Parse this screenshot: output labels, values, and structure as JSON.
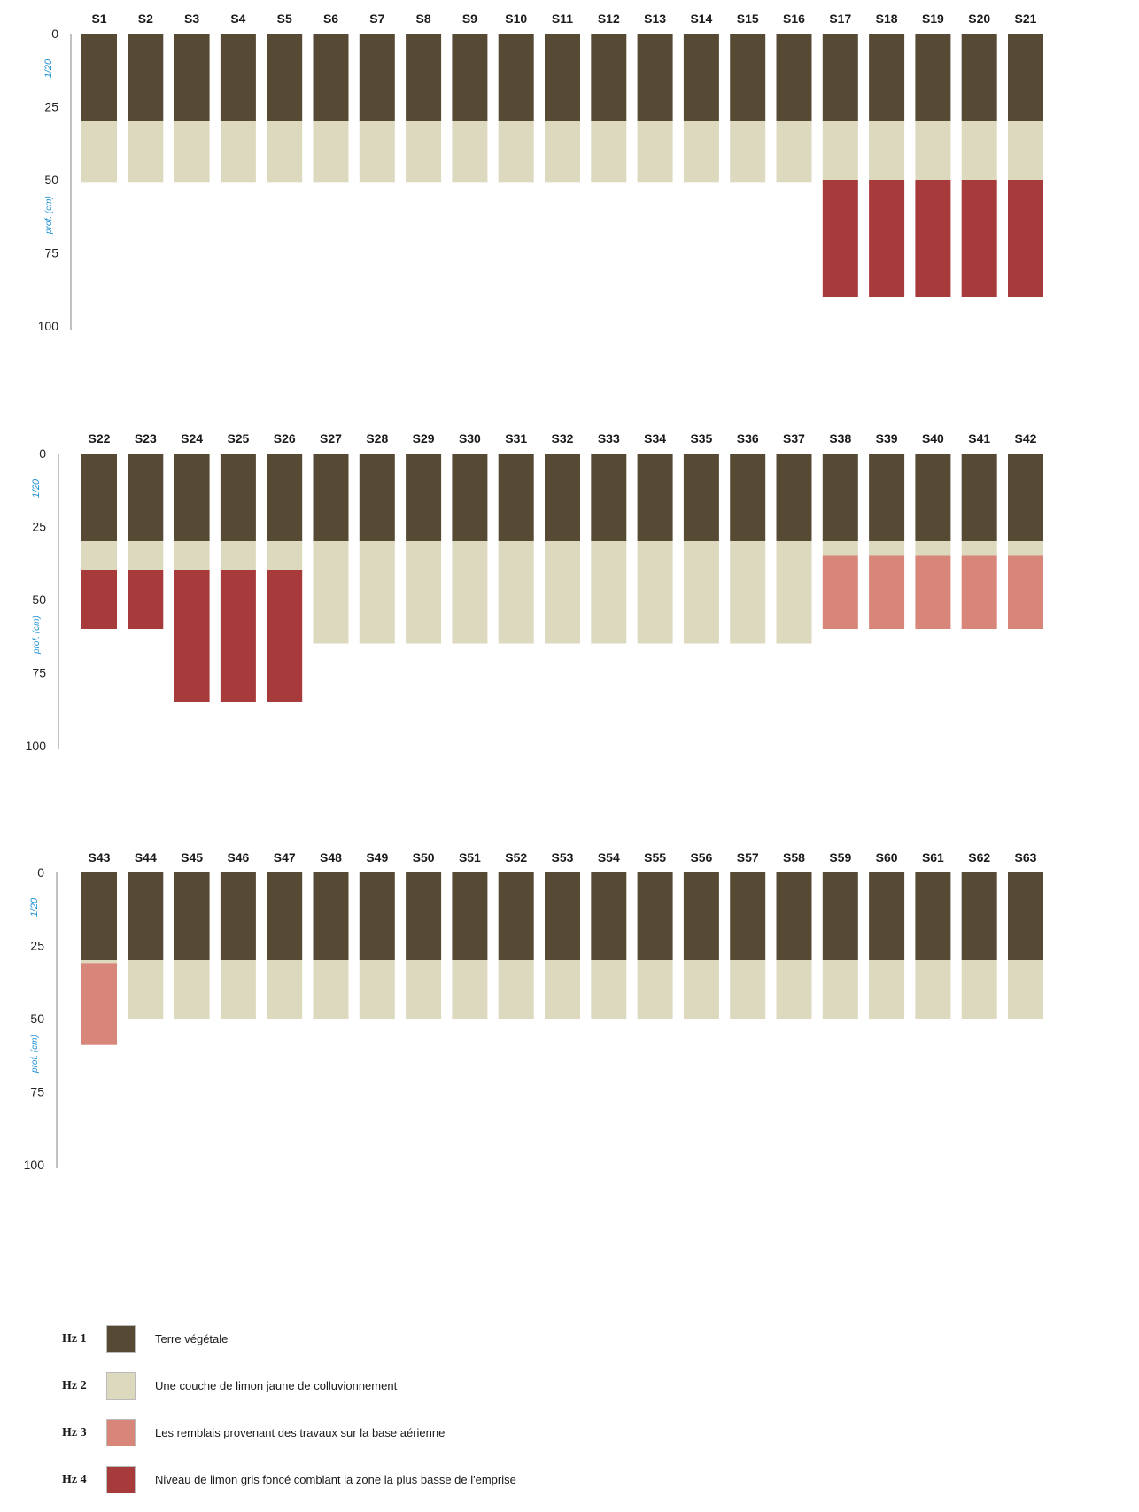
{
  "chart_data": [
    {
      "type": "bar",
      "subtype": "stacked-soil-profile",
      "ylabel": "prof. (cm)",
      "scale_label": "1/20",
      "yticks": [
        0,
        25,
        50,
        75,
        100
      ],
      "ylim": [
        0,
        100
      ],
      "y_inverted": true,
      "categories": [
        "S1",
        "S2",
        "S3",
        "S4",
        "S5",
        "S6",
        "S7",
        "S8",
        "S9",
        "S10",
        "S11",
        "S12",
        "S13",
        "S14",
        "S15",
        "S16",
        "S17",
        "S18",
        "S19",
        "S20",
        "S21"
      ],
      "series": [
        {
          "name": "Hz 1",
          "values": [
            30,
            30,
            30,
            30,
            30,
            30,
            30,
            30,
            30,
            30,
            30,
            30,
            30,
            30,
            30,
            30,
            30,
            30,
            30,
            30,
            30
          ]
        },
        {
          "name": "Hz 2",
          "values": [
            21,
            21,
            21,
            21,
            21,
            21,
            21,
            21,
            21,
            21,
            21,
            21,
            21,
            21,
            21,
            21,
            20,
            20,
            20,
            20,
            20
          ]
        },
        {
          "name": "Hz 3",
          "values": [
            0,
            0,
            0,
            0,
            0,
            0,
            0,
            0,
            0,
            0,
            0,
            0,
            0,
            0,
            0,
            0,
            0,
            0,
            0,
            0,
            0
          ]
        },
        {
          "name": "Hz 4",
          "values": [
            0,
            0,
            0,
            0,
            0,
            0,
            0,
            0,
            0,
            0,
            0,
            0,
            0,
            0,
            0,
            0,
            40,
            40,
            40,
            40,
            40
          ]
        }
      ]
    },
    {
      "type": "bar",
      "subtype": "stacked-soil-profile",
      "ylabel": "prof. (cm)",
      "scale_label": "1/20",
      "yticks": [
        0,
        25,
        50,
        75,
        100
      ],
      "ylim": [
        0,
        100
      ],
      "y_inverted": true,
      "categories": [
        "S22",
        "S23",
        "S24",
        "S25",
        "S26",
        "S27",
        "S28",
        "S29",
        "S30",
        "S31",
        "S32",
        "S33",
        "S34",
        "S35",
        "S36",
        "S37",
        "S38",
        "S39",
        "S40",
        "S41",
        "S42"
      ],
      "series": [
        {
          "name": "Hz 1",
          "values": [
            30,
            30,
            30,
            30,
            30,
            30,
            30,
            30,
            30,
            30,
            30,
            30,
            30,
            30,
            30,
            30,
            30,
            30,
            30,
            30,
            30
          ]
        },
        {
          "name": "Hz 2",
          "values": [
            10,
            10,
            10,
            10,
            10,
            35,
            35,
            35,
            35,
            35,
            35,
            35,
            35,
            35,
            35,
            35,
            5,
            5,
            5,
            5,
            5
          ]
        },
        {
          "name": "Hz 3",
          "values": [
            0,
            0,
            0,
            0,
            0,
            0,
            0,
            0,
            0,
            0,
            0,
            0,
            0,
            0,
            0,
            0,
            25,
            25,
            25,
            25,
            25
          ]
        },
        {
          "name": "Hz 4",
          "values": [
            20,
            20,
            45,
            45,
            45,
            0,
            0,
            0,
            0,
            0,
            0,
            0,
            0,
            0,
            0,
            0,
            0,
            0,
            0,
            0,
            0
          ]
        }
      ]
    },
    {
      "type": "bar",
      "subtype": "stacked-soil-profile",
      "ylabel": "prof. (cm)",
      "scale_label": "1/20",
      "yticks": [
        0,
        25,
        50,
        75,
        100
      ],
      "ylim": [
        0,
        100
      ],
      "y_inverted": true,
      "categories": [
        "S43",
        "S44",
        "S45",
        "S46",
        "S47",
        "S48",
        "S49",
        "S50",
        "S51",
        "S52",
        "S53",
        "S54",
        "S55",
        "S56",
        "S57",
        "S58",
        "S59",
        "S60",
        "S61",
        "S62",
        "S63"
      ],
      "series": [
        {
          "name": "Hz 1",
          "values": [
            30,
            30,
            30,
            30,
            30,
            30,
            30,
            30,
            30,
            30,
            30,
            30,
            30,
            30,
            30,
            30,
            30,
            30,
            30,
            30,
            30
          ]
        },
        {
          "name": "Hz 2",
          "values": [
            1,
            20,
            20,
            20,
            20,
            20,
            20,
            20,
            20,
            20,
            20,
            20,
            20,
            20,
            20,
            20,
            20,
            20,
            20,
            20,
            20
          ]
        },
        {
          "name": "Hz 3",
          "values": [
            28,
            0,
            0,
            0,
            0,
            0,
            0,
            0,
            0,
            0,
            0,
            0,
            0,
            0,
            0,
            0,
            0,
            0,
            0,
            0,
            0
          ]
        },
        {
          "name": "Hz 4",
          "values": [
            0,
            0,
            0,
            0,
            0,
            0,
            0,
            0,
            0,
            0,
            0,
            0,
            0,
            0,
            0,
            0,
            0,
            0,
            0,
            0,
            0
          ]
        }
      ]
    }
  ],
  "legend": [
    {
      "code": "Hz 1",
      "label": "Terre végétale",
      "color": "#574a35"
    },
    {
      "code": "Hz 2",
      "label": "Une couche de limon jaune de colluvionnement",
      "color": "#dcd9bf"
    },
    {
      "code": "Hz 3",
      "label": "Les remblais provenant des travaux sur la base aérienne",
      "color": "#d9867a"
    },
    {
      "code": "Hz 4",
      "label": "Niveau de limon gris foncé comblant la zone la plus basse de l'emprise",
      "color": "#a73a3a"
    }
  ]
}
